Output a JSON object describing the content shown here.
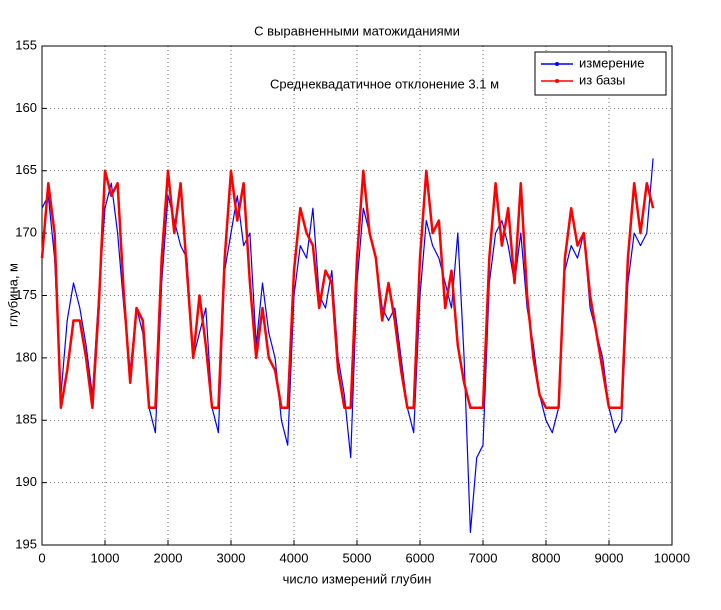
{
  "chart_data": {
    "type": "line",
    "title": "С выравненными матожиданиями",
    "xlabel": "число измерений глубин",
    "ylabel": "глубина, м",
    "annotation": "Среднеквадатичное отклонение 3.1 м",
    "x": [
      0,
      100,
      200,
      300,
      400,
      500,
      600,
      700,
      800,
      900,
      1000,
      1100,
      1200,
      1300,
      1400,
      1500,
      1600,
      1700,
      1800,
      1900,
      2000,
      2100,
      2200,
      2300,
      2400,
      2500,
      2600,
      2700,
      2800,
      2900,
      3000,
      3100,
      3200,
      3300,
      3400,
      3500,
      3600,
      3700,
      3800,
      3900,
      4000,
      4100,
      4200,
      4300,
      4400,
      4500,
      4600,
      4700,
      4800,
      4900,
      5000,
      5100,
      5200,
      5300,
      5400,
      5500,
      5600,
      5700,
      5800,
      5900,
      6000,
      6100,
      6200,
      6300,
      6400,
      6500,
      6600,
      6700,
      6800,
      6900,
      7000,
      7100,
      7200,
      7300,
      7400,
      7500,
      7600,
      7700,
      7800,
      7900,
      8000,
      8100,
      8200,
      8300,
      8400,
      8500,
      8600,
      8700,
      8800,
      8900,
      9000,
      9100,
      9200,
      9300,
      9400,
      9500,
      9600,
      9700
    ],
    "series": [
      {
        "name": "измерение",
        "color": "#0000ff",
        "values": [
          168,
          167,
          172,
          183,
          177,
          174,
          176,
          179,
          183,
          175,
          168,
          166,
          170,
          176,
          181,
          176,
          178,
          184,
          186,
          174,
          167,
          169,
          171,
          172,
          180,
          178,
          176,
          184,
          186,
          173,
          170,
          167,
          171,
          170,
          179,
          174,
          178,
          180,
          185,
          187,
          175,
          171,
          172,
          168,
          175,
          176,
          173,
          180,
          183,
          188,
          174,
          168,
          170,
          172,
          176,
          177,
          176,
          180,
          184,
          186,
          175,
          169,
          171,
          172,
          174,
          176,
          170,
          180,
          194,
          188,
          187,
          174,
          170,
          169,
          171,
          174,
          170,
          176,
          179,
          183,
          185,
          186,
          184,
          173,
          171,
          172,
          170,
          176,
          178,
          180,
          184,
          186,
          185,
          174,
          170,
          171,
          170,
          164
        ]
      },
      {
        "name": "из базы",
        "color": "#ff0000",
        "values": [
          172,
          166,
          170,
          184,
          181,
          177,
          177,
          180,
          184,
          176,
          165,
          167,
          166,
          175,
          182,
          176,
          177,
          184,
          184,
          172,
          165,
          170,
          166,
          173,
          180,
          175,
          179,
          184,
          184,
          172,
          165,
          169,
          166,
          174,
          180,
          176,
          180,
          181,
          184,
          184,
          173,
          168,
          170,
          171,
          176,
          173,
          174,
          181,
          184,
          184,
          172,
          165,
          170,
          172,
          177,
          174,
          177,
          181,
          184,
          184,
          172,
          165,
          170,
          169,
          176,
          173,
          179,
          182,
          184,
          184,
          184,
          172,
          166,
          171,
          168,
          174,
          166,
          175,
          180,
          183,
          184,
          184,
          184,
          172,
          168,
          171,
          170,
          175,
          178,
          181,
          184,
          184,
          184,
          172,
          166,
          170,
          166,
          168
        ]
      }
    ],
    "xlim": [
      0,
      10000
    ],
    "xticks": [
      0,
      1000,
      2000,
      3000,
      4000,
      5000,
      6000,
      7000,
      8000,
      9000,
      10000
    ],
    "ylim": [
      155,
      195
    ],
    "yticks": [
      155,
      160,
      165,
      170,
      175,
      180,
      185,
      190,
      195
    ],
    "y_reversed": true,
    "grid": true,
    "legend": "upper right"
  }
}
